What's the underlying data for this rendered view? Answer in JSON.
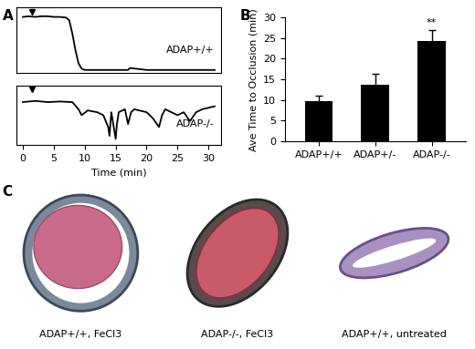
{
  "chart_data": [
    {
      "type": "line",
      "panel_label": "A",
      "tick_labels": false,
      "xlim": [
        -1,
        32
      ],
      "ylim": [
        0,
        1
      ],
      "arrows": [
        1.5
      ],
      "x": [
        0,
        1,
        2,
        3,
        4,
        5,
        6,
        7,
        7.5,
        8,
        8.5,
        9,
        9.5,
        10,
        12,
        15,
        17,
        17.3,
        20,
        25,
        31
      ],
      "series": [
        {
          "name": "ADAP+/+",
          "color": "#000000",
          "values": [
            0.85,
            0.86,
            0.85,
            0.86,
            0.86,
            0.85,
            0.85,
            0.84,
            0.8,
            0.6,
            0.35,
            0.15,
            0.07,
            0.05,
            0.05,
            0.05,
            0.05,
            0.08,
            0.05,
            0.05,
            0.05
          ]
        }
      ]
    },
    {
      "type": "line",
      "tick_labels": "x",
      "x_label": "Time (min)",
      "xlim": [
        -1,
        32
      ],
      "ylim": [
        0,
        1
      ],
      "xticks": [
        0,
        5,
        10,
        15,
        20,
        25,
        30
      ],
      "arrows": [
        1.5
      ],
      "x": [
        0,
        2,
        4,
        6,
        8,
        9,
        9.5,
        10.5,
        12,
        13,
        13.8,
        14,
        14.3,
        15,
        15.2,
        15.5,
        16.5,
        17,
        17.5,
        18,
        20,
        21,
        22,
        22.5,
        23,
        24,
        25,
        26,
        27,
        28,
        29,
        31
      ],
      "series": [
        {
          "name": "ADAP-/-",
          "color": "#000000",
          "values": [
            0.72,
            0.74,
            0.72,
            0.73,
            0.72,
            0.6,
            0.5,
            0.58,
            0.55,
            0.5,
            0.3,
            0.15,
            0.55,
            0.1,
            0.35,
            0.55,
            0.6,
            0.35,
            0.55,
            0.6,
            0.55,
            0.45,
            0.3,
            0.5,
            0.6,
            0.55,
            0.5,
            0.55,
            0.4,
            0.55,
            0.6,
            0.65
          ]
        }
      ]
    },
    {
      "type": "bar",
      "panel_label": "B",
      "y_label": "Ave Time to Occlusion (min)",
      "categories": [
        "ADAP+/+",
        "ADAP+/-",
        "ADAP-/-"
      ],
      "values": [
        9.8,
        13.7,
        24.2
      ],
      "errors": [
        1.3,
        2.7,
        2.7
      ],
      "color": "#000000",
      "ylim": [
        0,
        30
      ],
      "yticks": [
        0,
        5,
        10,
        15,
        20,
        25,
        30
      ],
      "annotations": [
        {
          "category": "ADAP-/-",
          "text": "**"
        }
      ]
    }
  ],
  "images": {
    "panel_label": "C",
    "captions": [
      "ADAP+/+, FeCl3",
      "ADAP-/-, FeCl3",
      "ADAP+/+, untreated"
    ]
  }
}
